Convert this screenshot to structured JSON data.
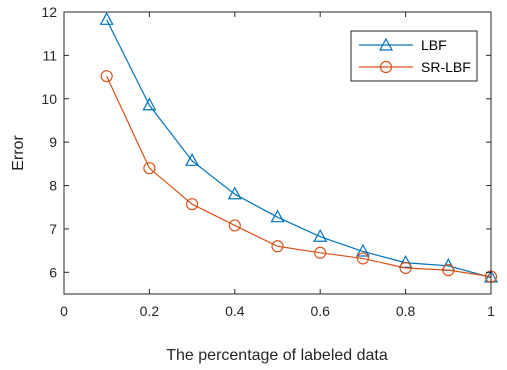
{
  "chart_data": {
    "type": "line",
    "xlabel": "The percentage of labeled data",
    "ylabel": "Error",
    "xlim": [
      0,
      1
    ],
    "ylim": [
      5.5,
      12
    ],
    "xticks": [
      0,
      0.2,
      0.4,
      0.6,
      0.8,
      1
    ],
    "xtick_labels": [
      "0",
      "0.2",
      "0.4",
      "0.6",
      "0.8",
      "1"
    ],
    "yticks": [
      6,
      7,
      8,
      9,
      10,
      11,
      12
    ],
    "ytick_labels": [
      "6",
      "7",
      "8",
      "9",
      "10",
      "11",
      "12"
    ],
    "grid": false,
    "legend_position": "top-right",
    "x": [
      0.1,
      0.2,
      0.3,
      0.4,
      0.5,
      0.6,
      0.7,
      0.8,
      0.9,
      1.0
    ],
    "series": [
      {
        "name": "LBF",
        "color": "#0072bd",
        "marker": "triangle",
        "values": [
          11.82,
          9.85,
          8.57,
          7.8,
          7.27,
          6.82,
          6.48,
          6.22,
          6.15,
          5.88
        ]
      },
      {
        "name": "SR-LBF",
        "color": "#d95319",
        "marker": "circle",
        "values": [
          10.52,
          8.4,
          7.57,
          7.08,
          6.6,
          6.45,
          6.32,
          6.1,
          6.05,
          5.9
        ]
      }
    ]
  }
}
